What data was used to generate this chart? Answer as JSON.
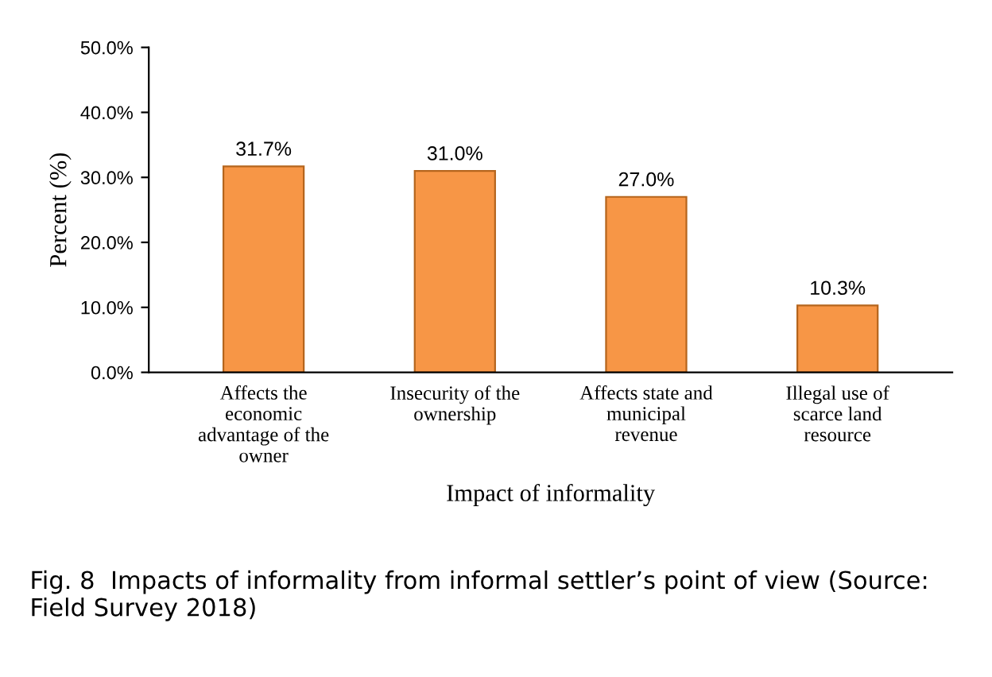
{
  "chart_data": {
    "type": "bar",
    "categories": [
      "Affects the\neconomic\nadvantage of the\nowner",
      "Insecurity of the\nownership",
      "Affects state and\nmunicipal\nrevenue",
      "Illegal use of\nscarce land\nresource"
    ],
    "values": [
      31.7,
      31.0,
      27.0,
      10.3
    ],
    "value_labels": [
      "31.7%",
      "31.0%",
      "27.0%",
      "10.3%"
    ],
    "color": "#f79646",
    "xlabel": "Impact of informality",
    "ylabel": "Percent (%)",
    "ylim": [
      0,
      50
    ],
    "yticks": [
      {
        "value": 0,
        "label": "0.0%"
      },
      {
        "value": 10,
        "label": "10.0%"
      },
      {
        "value": 20,
        "label": "20.0%"
      },
      {
        "value": 30,
        "label": "30.0%"
      },
      {
        "value": 40,
        "label": "40.0%"
      },
      {
        "value": 50,
        "label": "50.0%"
      }
    ],
    "grid": false,
    "annotations": [
      "Fig. 8  Impacts of informality from informal settler’s point of view (Source: Field Survey 2018)"
    ]
  }
}
